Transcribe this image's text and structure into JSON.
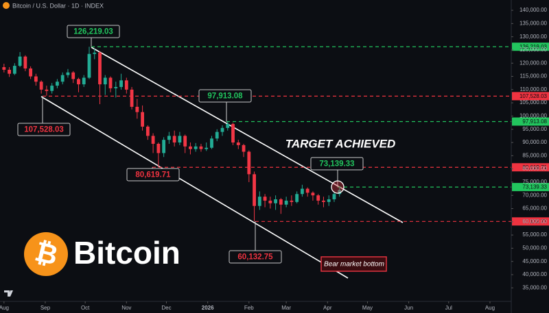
{
  "chart_data": {
    "type": "candlestick",
    "title": "Bitcoin / U.S. Dollar · 1D · INDEX",
    "annotation": "TARGET ACHIEVED",
    "note": "Bear market bottom",
    "logo_text": "Bitcoin",
    "logo_symbol": "₿",
    "up_color": "#22ab94",
    "down_color": "#f23645",
    "x": [
      0,
      4,
      8,
      12,
      16,
      20,
      24,
      28,
      32,
      36,
      40,
      44,
      48,
      52,
      56,
      60,
      64,
      68,
      72,
      76,
      80,
      84,
      88,
      92,
      96,
      100,
      104,
      108,
      112,
      116,
      120,
      124,
      128,
      132,
      136,
      140,
      144,
      148,
      152,
      156,
      160,
      164,
      168,
      172,
      176,
      180,
      184,
      188,
      192,
      196,
      200,
      204,
      208,
      212,
      216,
      220,
      224,
      228,
      232,
      236,
      240,
      244,
      248,
      252
    ],
    "series": [
      {
        "open": [
          118500,
          117500,
          116000,
          119000,
          122500,
          118000,
          115000,
          113000,
          110000,
          109500,
          111500,
          113000,
          115500,
          116500,
          114000,
          112000,
          114500,
          123500,
          124000,
          112000,
          114500,
          110500,
          111000,
          113500,
          110000,
          103500,
          101500,
          96000,
          92500,
          89500,
          86000,
          91000,
          92500,
          90000,
          92500,
          88500,
          87500,
          88500,
          87500,
          88000,
          91500,
          94000,
          95500,
          97000,
          90000,
          89000,
          86500,
          78000,
          66000,
          69500,
          68000,
          67000,
          68500,
          66500,
          68000,
          67500,
          70500,
          72500,
          71000,
          70000,
          68000,
          67500,
          68500,
          70500
        ],
        "high": [
          119800,
          118500,
          120000,
          124200,
          123000,
          118800,
          116000,
          113500,
          111500,
          112500,
          114000,
          116500,
          117800,
          117000,
          114500,
          115500,
          126219,
          125500,
          124500,
          115500,
          115000,
          113000,
          116000,
          114500,
          111000,
          106500,
          104000,
          96500,
          93500,
          90000,
          92000,
          94000,
          94500,
          94000,
          93000,
          90000,
          89800,
          89500,
          90000,
          92500,
          95000,
          96500,
          97900,
          97500,
          91000,
          89500,
          87000,
          79000,
          71500,
          70500,
          69500,
          70000,
          69000,
          69500,
          70000,
          71500,
          74000,
          73000,
          71500,
          70500,
          69500,
          70000,
          71500,
          73100
        ],
        "low": [
          116500,
          114800,
          115500,
          118500,
          117000,
          114000,
          111500,
          108500,
          107700,
          108500,
          110500,
          112000,
          114500,
          112500,
          109000,
          111000,
          114000,
          121500,
          104500,
          108000,
          109000,
          107000,
          110000,
          108500,
          102500,
          99000,
          94500,
          91000,
          86000,
          80700,
          84500,
          89500,
          88500,
          89000,
          86000,
          85500,
          86500,
          86500,
          86800,
          87500,
          90500,
          92500,
          94500,
          89000,
          87500,
          84500,
          75000,
          60200,
          64500,
          65500,
          65000,
          64500,
          63000,
          65500,
          66000,
          67000,
          69500,
          69500,
          68000,
          66500,
          65500,
          66000,
          67500,
          69500
        ],
        "close": [
          117500,
          116000,
          119000,
          122500,
          118000,
          115000,
          113000,
          110000,
          109500,
          111500,
          113000,
          115500,
          116500,
          114000,
          112000,
          114500,
          123500,
          124000,
          112000,
          114500,
          110500,
          111000,
          113500,
          110000,
          103500,
          101500,
          96000,
          92500,
          89500,
          86000,
          91000,
          92500,
          90000,
          92500,
          88500,
          87500,
          88500,
          87500,
          88000,
          91500,
          94000,
          95500,
          97000,
          90000,
          89000,
          86500,
          78000,
          66000,
          69500,
          68000,
          67000,
          68500,
          66500,
          68000,
          67500,
          70500,
          72500,
          71000,
          70000,
          68000,
          67500,
          68500,
          70500,
          72000
        ]
      }
    ],
    "levels": [
      {
        "value": 126219.03,
        "label": "126,219.03",
        "color": "#22c55e"
      },
      {
        "value": 107528.03,
        "label": "107,528.03",
        "color": "#ef3340"
      },
      {
        "value": 97913.08,
        "label": "97,913.08",
        "color": "#22c55e"
      },
      {
        "value": 80619.71,
        "label": "80,619.71",
        "color": "#ef3340"
      },
      {
        "value": 73139.33,
        "label": "73,139.33",
        "color": "#22c55e"
      },
      {
        "value": 60132.75,
        "label": "60,132.75",
        "color": "#ef3340"
      }
    ],
    "xlim": [
      -3,
      381
    ],
    "xticks": [
      {
        "value": 0,
        "label": "Aug"
      },
      {
        "value": 31,
        "label": "Sep"
      },
      {
        "value": 61,
        "label": "Oct"
      },
      {
        "value": 92,
        "label": "Nov"
      },
      {
        "value": 122,
        "label": "Dec"
      },
      {
        "value": 153,
        "label": "2026"
      },
      {
        "value": 184,
        "label": "Feb"
      },
      {
        "value": 212,
        "label": "Mar"
      },
      {
        "value": 243,
        "label": "Apr"
      },
      {
        "value": 273,
        "label": "May"
      },
      {
        "value": 304,
        "label": "Jun"
      },
      {
        "value": 334,
        "label": "Jul"
      },
      {
        "value": 365,
        "label": "Aug"
      }
    ],
    "ylim": [
      29900,
      143900
    ],
    "yticks": [
      {
        "value": 35000,
        "label": "35,000.00"
      },
      {
        "value": 40000,
        "label": "40,000.00"
      },
      {
        "value": 45000,
        "label": "45,000.00"
      },
      {
        "value": 50000,
        "label": "50,000.00"
      },
      {
        "value": 55000,
        "label": "55,000.00"
      },
      {
        "value": 60000,
        "label": "60,000.00"
      },
      {
        "value": 65000,
        "label": "65,000.00"
      },
      {
        "value": 70000,
        "label": "70,000.00"
      },
      {
        "value": 75000,
        "label": "75,000.00"
      },
      {
        "value": 80000,
        "label": "80,000.00"
      },
      {
        "value": 85000,
        "label": "85,000.00"
      },
      {
        "value": 90000,
        "label": "90,000.00"
      },
      {
        "value": 95000,
        "label": "95,000.00"
      },
      {
        "value": 100000,
        "label": "100,000.00"
      },
      {
        "value": 105000,
        "label": "105,000.00"
      },
      {
        "value": 110000,
        "label": "110,000.00"
      },
      {
        "value": 115000,
        "label": "115,000.00"
      },
      {
        "value": 120000,
        "label": "120,000.00"
      },
      {
        "value": 125000,
        "label": "125,000.00"
      },
      {
        "value": 130000,
        "label": "130,000.00"
      },
      {
        "value": 135000,
        "label": "135,000.00"
      },
      {
        "value": 140000,
        "label": "140,000.00"
      }
    ]
  }
}
